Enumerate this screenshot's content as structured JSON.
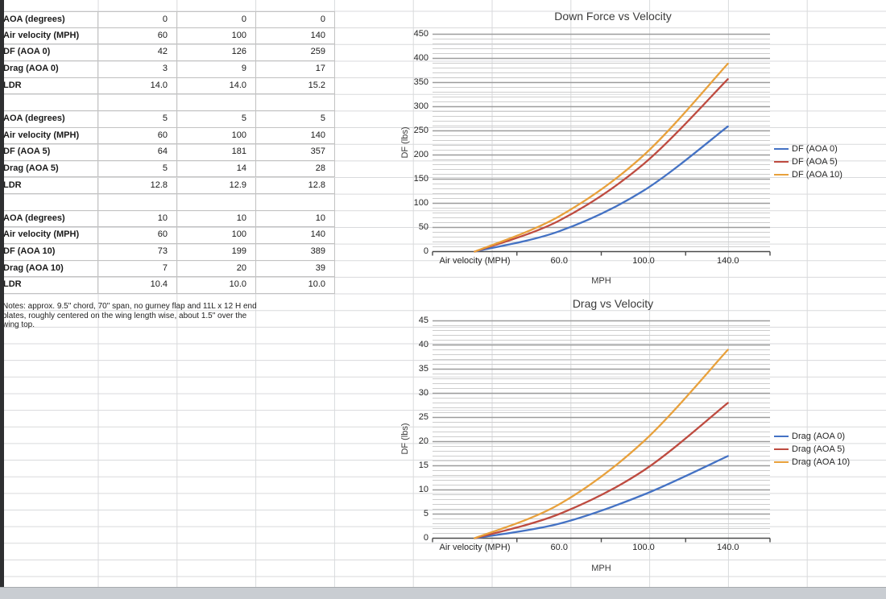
{
  "sheet": {
    "table": {
      "blocks": [
        {
          "rows": [
            {
              "label": "AOA (degrees)",
              "values": [
                "0",
                "0",
                "0"
              ]
            },
            {
              "label": "Air velocity (MPH)",
              "values": [
                "60",
                "100",
                "140"
              ]
            },
            {
              "label": "DF (AOA 0)",
              "values": [
                "42",
                "126",
                "259"
              ]
            },
            {
              "label": "Drag (AOA 0)",
              "values": [
                "3",
                "9",
                "17"
              ]
            },
            {
              "label": "LDR",
              "values": [
                "14.0",
                "14.0",
                "15.2"
              ]
            }
          ]
        },
        {
          "rows": [
            {
              "label": "AOA (degrees)",
              "values": [
                "5",
                "5",
                "5"
              ]
            },
            {
              "label": "Air velocity (MPH)",
              "values": [
                "60",
                "100",
                "140"
              ]
            },
            {
              "label": "DF (AOA 5)",
              "values": [
                "64",
                "181",
                "357"
              ]
            },
            {
              "label": "Drag (AOA 5)",
              "values": [
                "5",
                "14",
                "28"
              ]
            },
            {
              "label": "LDR",
              "values": [
                "12.8",
                "12.9",
                "12.8"
              ]
            }
          ]
        },
        {
          "rows": [
            {
              "label": "AOA (degrees)",
              "values": [
                "10",
                "10",
                "10"
              ]
            },
            {
              "label": "Air velocity (MPH)",
              "values": [
                "60",
                "100",
                "140"
              ]
            },
            {
              "label": "DF (AOA 10)",
              "values": [
                "73",
                "199",
                "389"
              ]
            },
            {
              "label": "Drag (AOA 10)",
              "values": [
                "7",
                "20",
                "39"
              ]
            },
            {
              "label": "LDR",
              "values": [
                "10.4",
                "10.0",
                "10.0"
              ]
            }
          ]
        }
      ],
      "notes": "Notes: approx. 9.5\" chord, 70\" span, no gurney flap and 11L x 12 H end plates, roughly centered on the wing length wise, about 1.5\" over the wing top."
    }
  },
  "chart_data": [
    {
      "type": "line",
      "title": "Down Force vs Velocity",
      "categories": [
        "Air velocity (MPH)",
        "60.0",
        "100.0",
        "140.0"
      ],
      "series": [
        {
          "name": "DF (AOA 0)",
          "values": [
            0,
            42,
            126,
            259
          ],
          "color": "#4472C4"
        },
        {
          "name": "DF (AOA 5)",
          "values": [
            0,
            64,
            181,
            357
          ],
          "color": "#BE4B40"
        },
        {
          "name": "DF (AOA 10)",
          "values": [
            0,
            73,
            199,
            389
          ],
          "color": "#E8A13C"
        }
      ],
      "xlabel": "MPH",
      "ylabel": "DF (lbs)",
      "ylim": [
        0,
        450
      ],
      "y_major": 50,
      "y_minor": 10,
      "yticks": [
        "450",
        "400",
        "350",
        "300",
        "250",
        "200",
        "150",
        "100",
        "50",
        "0"
      ],
      "legend_position": "right",
      "grid": "on"
    },
    {
      "type": "line",
      "title": "Drag vs Velocity",
      "categories": [
        "Air velocity (MPH)",
        "60.0",
        "100.0",
        "140.0"
      ],
      "series": [
        {
          "name": "Drag (AOA 0)",
          "values": [
            0,
            3,
            9,
            17
          ],
          "color": "#4472C4"
        },
        {
          "name": "Drag (AOA 5)",
          "values": [
            0,
            5,
            14,
            28
          ],
          "color": "#BE4B40"
        },
        {
          "name": "Drag (AOA 10)",
          "values": [
            0,
            7,
            20,
            39
          ],
          "color": "#E8A13C"
        }
      ],
      "xlabel": "MPH",
      "ylabel": "DF (lbs)",
      "ylim": [
        0,
        45
      ],
      "y_major": 5,
      "y_minor": 1,
      "yticks": [
        "45",
        "40",
        "35",
        "30",
        "25",
        "20",
        "15",
        "10",
        "5",
        "0"
      ],
      "legend_position": "right",
      "grid": "on"
    }
  ]
}
